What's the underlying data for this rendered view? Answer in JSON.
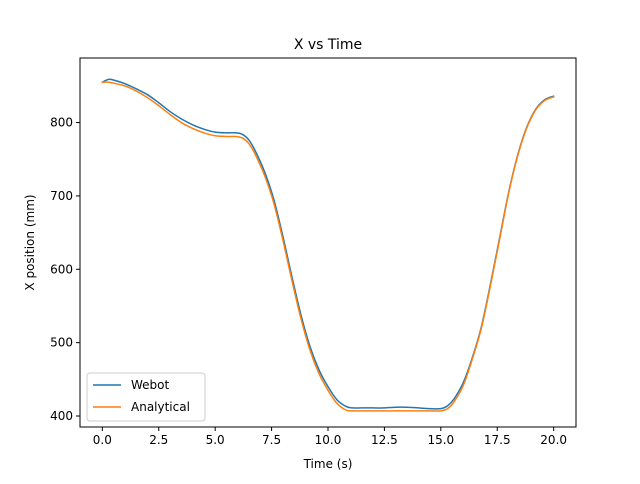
{
  "chart_data": {
    "type": "line",
    "title": "X vs Time",
    "xlabel": "Time (s)",
    "ylabel": "X position (mm)",
    "xlim": [
      -0.99,
      20.99
    ],
    "ylim": [
      385,
      888
    ],
    "xticks": [
      0.0,
      2.5,
      5.0,
      7.5,
      10.0,
      12.5,
      15.0,
      17.5,
      20.0
    ],
    "xtick_labels": [
      "0.0",
      "2.5",
      "5.0",
      "7.5",
      "10.0",
      "12.5",
      "15.0",
      "17.5",
      "20.0"
    ],
    "yticks": [
      400,
      500,
      600,
      700,
      800
    ],
    "ytick_labels": [
      "400",
      "500",
      "600",
      "700",
      "800"
    ],
    "grid": false,
    "legend": "lower-left",
    "series": [
      {
        "name": "Webot",
        "color": "#1f77b4",
        "x": [
          0.0,
          0.3,
          0.6,
          1.0,
          1.5,
          2.0,
          2.5,
          3.0,
          3.5,
          4.0,
          4.5,
          5.0,
          5.5,
          5.9,
          6.2,
          6.5,
          6.8,
          7.2,
          7.6,
          8.0,
          8.4,
          8.8,
          9.2,
          9.6,
          10.0,
          10.4,
          10.8,
          11.1,
          11.5,
          12.0,
          12.5,
          13.0,
          13.5,
          14.0,
          14.5,
          15.0,
          15.3,
          15.6,
          16.0,
          16.4,
          16.8,
          17.2,
          17.6,
          18.0,
          18.4,
          18.8,
          19.2,
          19.6,
          20.0
        ],
        "y": [
          855,
          859,
          857,
          853,
          846,
          838,
          827,
          815,
          805,
          797,
          791,
          787,
          786,
          786,
          784,
          776,
          760,
          732,
          695,
          645,
          590,
          538,
          495,
          463,
          440,
          422,
          413,
          411,
          411,
          411,
          411,
          412,
          412,
          411,
          410,
          410,
          414,
          424,
          446,
          480,
          522,
          580,
          642,
          704,
          755,
          793,
          818,
          831,
          836
        ]
      },
      {
        "name": "Analytical",
        "color": "#ff7f0e",
        "x": [
          0.0,
          0.3,
          0.6,
          1.0,
          1.5,
          2.0,
          2.5,
          3.0,
          3.5,
          4.0,
          4.5,
          5.0,
          5.5,
          5.9,
          6.2,
          6.5,
          6.8,
          7.2,
          7.6,
          8.0,
          8.4,
          8.8,
          9.2,
          9.6,
          10.0,
          10.4,
          10.8,
          11.1,
          11.5,
          12.0,
          12.5,
          13.0,
          13.5,
          14.0,
          14.5,
          15.0,
          15.3,
          15.6,
          16.0,
          16.4,
          16.8,
          17.2,
          17.6,
          18.0,
          18.4,
          18.8,
          19.2,
          19.6,
          20.0
        ],
        "y": [
          855,
          855,
          853,
          850,
          843,
          834,
          823,
          811,
          800,
          792,
          786,
          782,
          781,
          781,
          779,
          771,
          755,
          727,
          690,
          640,
          585,
          533,
          490,
          458,
          435,
          417,
          408,
          407,
          407,
          407,
          407,
          407,
          407,
          407,
          407,
          407,
          410,
          420,
          442,
          478,
          520,
          578,
          640,
          703,
          754,
          792,
          817,
          830,
          835
        ]
      }
    ]
  }
}
